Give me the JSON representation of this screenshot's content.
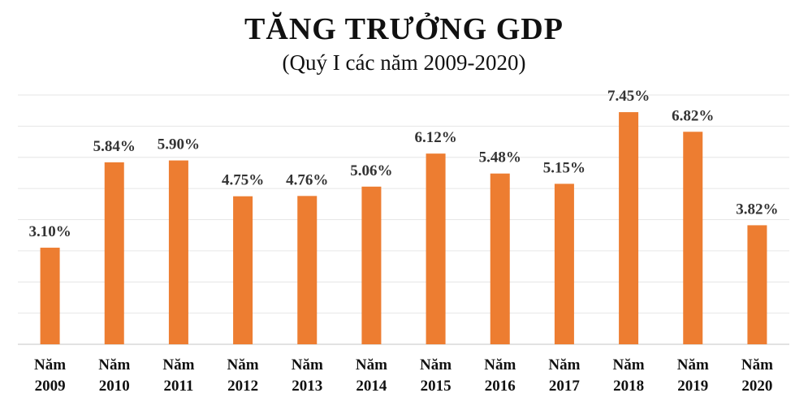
{
  "chart_data": {
    "type": "bar",
    "title": "TĂNG TRƯỞNG GDP",
    "subtitle": "(Quý I các năm 2009-2020)",
    "categories": [
      [
        "Năm",
        "2009"
      ],
      [
        "Năm",
        "2010"
      ],
      [
        "Năm",
        "2011"
      ],
      [
        "Năm",
        "2012"
      ],
      [
        "Năm",
        "2013"
      ],
      [
        "Năm",
        "2014"
      ],
      [
        "Năm",
        "2015"
      ],
      [
        "Năm",
        "2016"
      ],
      [
        "Năm",
        "2017"
      ],
      [
        "Năm",
        "2018"
      ],
      [
        "Năm",
        "2019"
      ],
      [
        "Năm",
        "2020"
      ]
    ],
    "values": [
      3.1,
      5.84,
      5.9,
      4.75,
      4.76,
      5.06,
      6.12,
      5.48,
      5.15,
      7.45,
      6.82,
      3.82
    ],
    "data_labels": [
      "3.10%",
      "5.84%",
      "5.90%",
      "4.75%",
      "4.76%",
      "5.06%",
      "6.12%",
      "5.48%",
      "5.15%",
      "7.45%",
      "6.82%",
      "3.82%"
    ],
    "ylim": [
      0,
      8
    ],
    "grid": true,
    "legend": "none",
    "bar_color": "#ED7D31",
    "grid_color": "#E6E6E6",
    "axis_color": "#D9D9D9"
  }
}
